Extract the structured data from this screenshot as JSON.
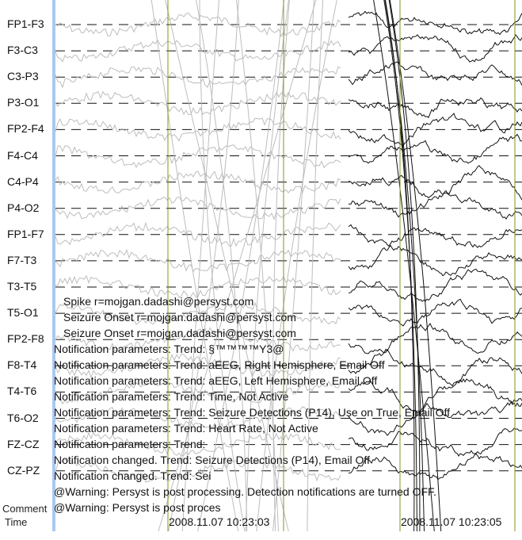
{
  "channels": [
    "FP1-F3",
    "F3-C3",
    "C3-P3",
    "P3-O1",
    "FP2-F4",
    "F4-C4",
    "C4-P4",
    "P4-O2",
    "FP1-F7",
    "F7-T3",
    "T3-T5",
    "T5-O1",
    "FP2-F8",
    "F8-T4",
    "T4-T6",
    "T6-O2",
    "FZ-CZ",
    "CZ-PZ"
  ],
  "row_labels": {
    "comment": "Comment",
    "time": "Time"
  },
  "annotations": [
    "Spike r=mojgan.dadashi@persyst.com",
    "Seizure Onset r=mojgan.dadashi@persyst.com",
    "Seizure Onset r=mojgan.dadashi@persyst.com",
    "Notification parameters: Trend: §™™™™Y3@",
    "Notification parameters: Trend: aEEG, Right Hemisphere, Email Off",
    "Notification parameters: Trend: aEEG, Left Hemisphere, Email Off",
    "Notification parameters: Trend: Time, Not Active",
    "Notification parameters: Trend: Seizure Detections (P14), Use on True, Email Off",
    "Notification parameters: Trend: Heart Rate, Not Active",
    "Notification parameters: Trend:",
    "Notification changed. Trend: Seizure Detections (P14), Email Off",
    "Notification changed. Trend: Sei",
    "@Warning: Persyst is post processing. Detection notifications are turned OFF.",
    "@Warning: Persyst is post proces"
  ],
  "timestamps": [
    "2008.11.07 10:23:03",
    "2008.11.07 10:23:05"
  ],
  "colors": {
    "marker": "#7a9a1a",
    "scroll_bar": "#a9c8ef",
    "trace_dark": "#111111",
    "trace_light": "#bdbdbd"
  }
}
